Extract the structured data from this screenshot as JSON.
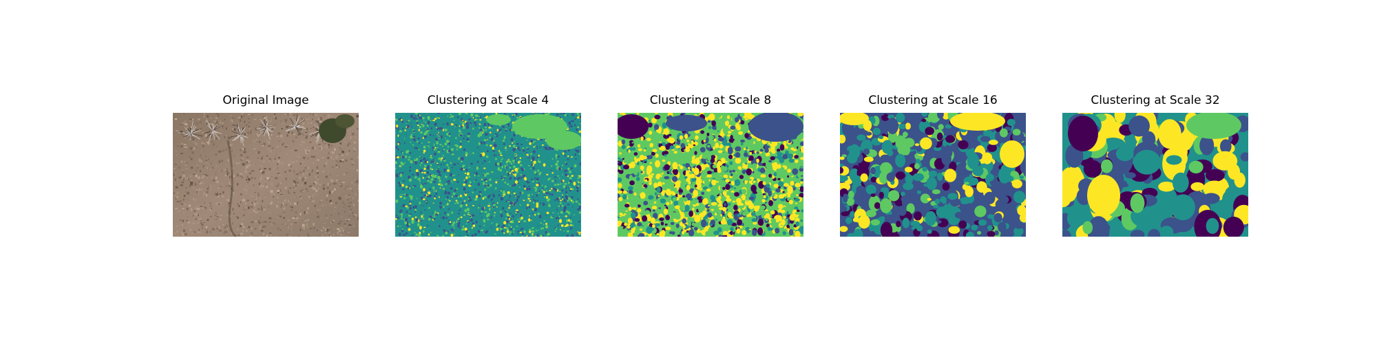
{
  "figure": {
    "panels": [
      {
        "id": "original",
        "title": "Original Image",
        "kind": "photo"
      },
      {
        "id": "scale4",
        "title": "Clustering at Scale 4",
        "kind": "cluster",
        "scale": 4
      },
      {
        "id": "scale8",
        "title": "Clustering at Scale 8",
        "kind": "cluster",
        "scale": 8
      },
      {
        "id": "scale16",
        "title": "Clustering at Scale 16",
        "kind": "cluster",
        "scale": 16
      },
      {
        "id": "scale32",
        "title": "Clustering at Scale 32",
        "kind": "cluster",
        "scale": 32
      }
    ],
    "colormap": [
      "#440154",
      "#3b528b",
      "#21918c",
      "#5ec962",
      "#fde725"
    ]
  }
}
